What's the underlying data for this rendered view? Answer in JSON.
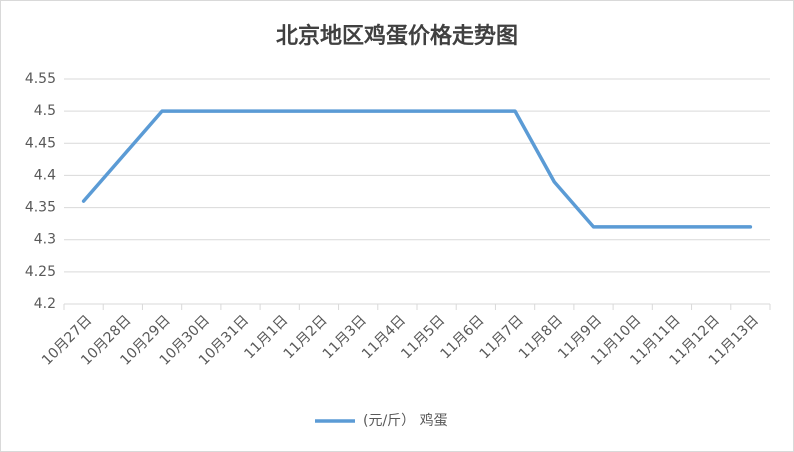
{
  "chart_data": {
    "type": "line",
    "title": "北京地区鸡蛋价格走势图",
    "categories": [
      "10月27日",
      "10月28日",
      "10月29日",
      "10月30日",
      "10月31日",
      "11月1日",
      "11月2日",
      "11月3日",
      "11月4日",
      "11月5日",
      "11月6日",
      "11月7日",
      "11月8日",
      "11月9日",
      "11月10日",
      "11月11日",
      "11月12日",
      "11月13日"
    ],
    "series": [
      {
        "name": "(元/斤） 鸡蛋",
        "color": "#5b9bd5",
        "values": [
          4.36,
          4.43,
          4.5,
          4.5,
          4.5,
          4.5,
          4.5,
          4.5,
          4.5,
          4.5,
          4.5,
          4.5,
          4.39,
          4.32,
          4.32,
          4.32,
          4.32,
          4.32
        ]
      }
    ],
    "ylim": [
      4.2,
      4.55
    ],
    "yticks": [
      4.2,
      4.25,
      4.3,
      4.35,
      4.4,
      4.45,
      4.5,
      4.55
    ],
    "grid": true
  }
}
